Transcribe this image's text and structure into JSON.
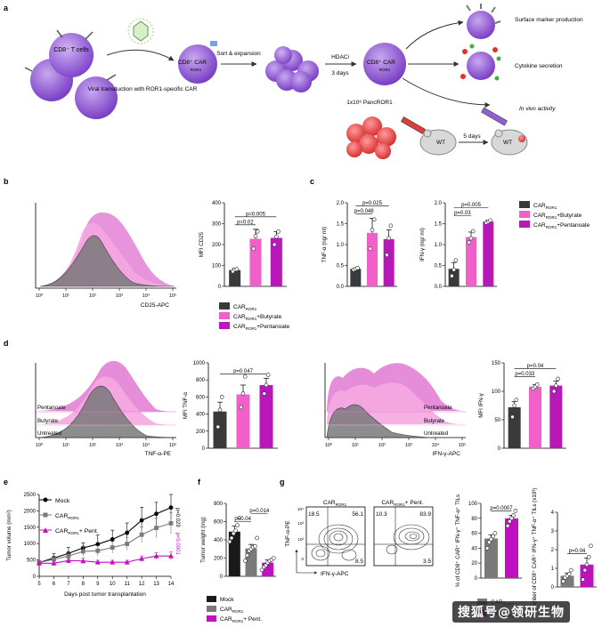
{
  "panel_letters": [
    "a",
    "b",
    "c",
    "d",
    "e",
    "f",
    "g"
  ],
  "panel_a": {
    "cd8_tcells": "CD8⁺ T cells",
    "viral_transduction": "Viral transduction with ROR1-specific CAR",
    "car_ror1": "CD8⁺ CAR",
    "ror1_sub": "ROR1",
    "sort_expansion": "Sort & expansion",
    "hdaci": "HDACi",
    "three_days": "3 days",
    "pancror1": "1x10⁶ PancROR1",
    "wt": "WT",
    "five_days": "5 days",
    "surface_marker": "Surface marker production",
    "cytokine": "Cytokine secretion",
    "in_vivo": "In vivo activity"
  },
  "legend_b": [
    "CAR_ROR1",
    "CAR_ROR1+Butyrate",
    "CAR_ROR1+Pentanoate"
  ],
  "legend_labels": {
    "car": "CAR",
    "sub": "ROR1",
    "butyrate": "+Butyrate",
    "pentanoate": "+Pentanoate",
    "pent": "+ Pent."
  },
  "colors": {
    "black": "#3a3a3a",
    "pink": "#f060c8",
    "magenta": "#b818b8",
    "grey": "#7a7a7a",
    "light_pink": "#f4a8e0"
  },
  "hist_b": {
    "xlabel": "CD25-APC",
    "ticks": [
      "10⁰",
      "10¹",
      "10²",
      "10³",
      "10⁴",
      "10⁵"
    ]
  },
  "hist_d1": {
    "xlabel": "TNF-α-PE",
    "rows": [
      "Pentanoate",
      "Butyrate",
      "Untreated"
    ],
    "ticks": [
      "10⁰",
      "10¹",
      "10²",
      "10³",
      "10⁴",
      "10⁵"
    ]
  },
  "hist_d2": {
    "xlabel": "IFN-γ-APC",
    "rows": [
      "Pentanoate",
      "Butyrate",
      "Untreated"
    ],
    "ticks": [
      "10⁰",
      "10¹",
      "10²",
      "10³",
      "10⁴",
      "10⁵"
    ]
  },
  "chart_data": [
    {
      "id": "b_mfi_cd25",
      "type": "bar",
      "ylabel": "MFI CD25",
      "ylim": [
        0,
        400
      ],
      "yticks": [
        "0",
        "100",
        "200",
        "300",
        "400"
      ],
      "categories": [
        "CAR_ROR1",
        "CAR_ROR1+Butyrate",
        "CAR_ROR1+Pentanoate"
      ],
      "values": [
        78,
        228,
        232
      ],
      "errors": [
        8,
        45,
        30
      ],
      "points": [
        [
          72,
          80,
          82
        ],
        [
          180,
          240,
          262
        ],
        [
          200,
          238,
          262
        ]
      ],
      "pvalues": [
        {
          "label": "p=0.02",
          "from": 0,
          "to": 1
        },
        {
          "label": "p=0.005",
          "from": 0,
          "to": 2
        }
      ]
    },
    {
      "id": "c_tnfa",
      "type": "bar",
      "ylabel": "TNF-α (ng/ ml)",
      "ylim": [
        0,
        2.0
      ],
      "yticks": [
        "0.0",
        "0.5",
        "1.0",
        "1.5",
        "2.0"
      ],
      "categories": [
        "CAR_ROR1",
        "CAR_ROR1+Butyrate",
        "CAR_ROR1+Pentanoate"
      ],
      "values": [
        0.42,
        1.28,
        1.13
      ],
      "errors": [
        0.02,
        0.35,
        0.22
      ],
      "points": [
        [
          0.4,
          0.42,
          0.44
        ],
        [
          0.9,
          1.35,
          1.6
        ],
        [
          0.75,
          1.15,
          1.45
        ]
      ],
      "pvalues": [
        {
          "label": "p=0.048",
          "from": 0,
          "to": 1
        },
        {
          "label": "p=0.025",
          "from": 0,
          "to": 2
        }
      ]
    },
    {
      "id": "c_ifng",
      "type": "bar",
      "ylabel": "IFN-γ (ng/ ml)",
      "ylim": [
        0,
        2.0
      ],
      "yticks": [
        "0.0",
        "0.5",
        "1.0",
        "1.5",
        "2.0"
      ],
      "categories": [
        "CAR_ROR1",
        "CAR_ROR1+Butyrate",
        "CAR_ROR1+Pentanoate"
      ],
      "values": [
        0.42,
        1.18,
        1.55
      ],
      "errors": [
        0.15,
        0.12,
        0.03
      ],
      "points": [
        [
          0.25,
          0.4,
          0.62
        ],
        [
          1.05,
          1.15,
          1.32
        ],
        [
          1.52,
          1.55,
          1.58
        ]
      ],
      "pvalues": [
        {
          "label": "p=0.03",
          "from": 0,
          "to": 1
        },
        {
          "label": "p=0.005",
          "from": 0,
          "to": 2
        }
      ]
    },
    {
      "id": "d_mfi_tnfa",
      "type": "bar",
      "ylabel": "MFI TNF-α",
      "ylim": [
        0,
        1000
      ],
      "yticks": [
        "0",
        "200",
        "400",
        "600",
        "800",
        "1000"
      ],
      "categories": [
        "CAR_ROR1",
        "CAR_ROR1+Butyrate",
        "CAR_ROR1+Pentanoate"
      ],
      "values": [
        430,
        630,
        740
      ],
      "errors": [
        110,
        110,
        80
      ],
      "points": [
        [
          250,
          450,
          600
        ],
        [
          480,
          640,
          840
        ],
        [
          640,
          740,
          860
        ]
      ],
      "pvalues": [
        {
          "label": "p=0.047",
          "from": 0,
          "to": 2
        }
      ]
    },
    {
      "id": "d_mfi_ifng",
      "type": "bar",
      "ylabel": "MFI IFN-γ",
      "ylim": [
        0,
        150
      ],
      "yticks": [
        "0",
        "50",
        "100",
        "150"
      ],
      "categories": [
        "CAR_ROR1",
        "CAR_ROR1+Butyrate",
        "CAR_ROR1+Pentanoate"
      ],
      "values": [
        72,
        108,
        110
      ],
      "errors": [
        10,
        4,
        8
      ],
      "points": [
        [
          55,
          75,
          85
        ],
        [
          105,
          108,
          112
        ],
        [
          100,
          110,
          122
        ]
      ],
      "pvalues": [
        {
          "label": "p=0.033",
          "from": 0,
          "to": 1
        },
        {
          "label": "p=0.04",
          "from": 0,
          "to": 2
        }
      ]
    },
    {
      "id": "e_tumor",
      "type": "line",
      "xlabel": "Days post tumor transplantation",
      "ylabel": "Tumor volume (mm³)",
      "xlim": [
        5,
        14
      ],
      "ylim": [
        0,
        2500
      ],
      "xticks": [
        "5",
        "6",
        "7",
        "8",
        "9",
        "10",
        "11",
        "12",
        "13",
        "14"
      ],
      "yticks": [
        "0",
        "500",
        "1000",
        "1500",
        "2000",
        "2500"
      ],
      "x": [
        5,
        6,
        7,
        8,
        9,
        10,
        11,
        12,
        13,
        14
      ],
      "series": [
        {
          "name": "Mock",
          "marker": "circle",
          "values": [
            420,
            560,
            700,
            870,
            980,
            1130,
            1330,
            1710,
            1910,
            2100
          ],
          "err": [
            60,
            140,
            180,
            150,
            280,
            280,
            300,
            400,
            350,
            400
          ]
        },
        {
          "name": "CAR_ROR1",
          "marker": "square",
          "values": [
            420,
            520,
            620,
            760,
            780,
            880,
            990,
            1270,
            1480,
            1620
          ],
          "err": [
            60,
            100,
            110,
            150,
            150,
            180,
            200,
            240,
            300,
            320
          ]
        },
        {
          "name": "CAR_ROR1 + Pent.",
          "marker": "triangle",
          "values": [
            400,
            400,
            480,
            470,
            430,
            430,
            430,
            540,
            620,
            620
          ],
          "err": [
            40,
            60,
            60,
            80,
            60,
            60,
            60,
            80,
            100,
            120
          ]
        }
      ],
      "pvalues": [
        {
          "label": "p=0.029",
          "between": "Mock vs CAR_ROR1"
        },
        {
          "label": "p<0.0001",
          "between": "CAR_ROR1 vs Pent."
        }
      ]
    },
    {
      "id": "f_weight",
      "type": "bar",
      "ylabel": "Tumor weight (mg)",
      "ylim": [
        0,
        800
      ],
      "yticks": [
        "0",
        "200",
        "400",
        "600",
        "800"
      ],
      "categories": [
        "Mock",
        "CAR_ROR1",
        "CAR_ROR1 + Pent."
      ],
      "values": [
        490,
        305,
        150
      ],
      "errors": [
        60,
        45,
        30
      ],
      "points": [
        [
          380,
          420,
          470,
          500,
          560,
          640
        ],
        [
          170,
          230,
          280,
          300,
          320,
          330,
          420
        ],
        [
          70,
          100,
          120,
          150,
          170,
          180,
          200
        ]
      ],
      "pvalues": [
        {
          "label": "p=0.04",
          "from": 0,
          "to": 1
        },
        {
          "label": "p=0.014",
          "from": 1,
          "to": 2
        }
      ],
      "legend": [
        "Mock",
        "CAR_ROR1",
        "CAR_ROR1 + Pent."
      ]
    },
    {
      "id": "g_percent",
      "type": "bar",
      "ylabel": "% of CD8⁺ CAR⁺ IFN-γ⁺ TNF-α⁺ TILs",
      "ylim": [
        0,
        100
      ],
      "yticks": [
        "0",
        "20",
        "40",
        "60",
        "80",
        "100"
      ],
      "categories": [
        "CAR_ROR1",
        "CAR_ROR1 + Pent."
      ],
      "values": [
        53,
        80
      ],
      "errors": [
        5,
        4
      ],
      "points": [
        [
          40,
          48,
          52,
          56,
          60
        ],
        [
          70,
          76,
          80,
          84,
          90
        ]
      ],
      "pvalues": [
        {
          "label": "p=0.0007",
          "from": 0,
          "to": 1
        }
      ]
    },
    {
      "id": "g_number",
      "type": "bar",
      "ylabel": "Number of CD8⁺ CAR⁺ IFN-γ⁺ TNF-α⁺ TILs (x10³)",
      "ylim": [
        0,
        4
      ],
      "yticks": [
        "0",
        "1",
        "2",
        "3",
        "4"
      ],
      "categories": [
        "CAR_ROR1",
        "CAR_ROR1 + Pent."
      ],
      "values": [
        0.6,
        1.2
      ],
      "errors": [
        0.15,
        0.35
      ],
      "points": [
        [
          0.3,
          0.5,
          0.6,
          0.7,
          0.9
        ],
        [
          0.4,
          0.9,
          1.2,
          1.6,
          2.2
        ]
      ],
      "pvalues": [
        {
          "label": "p=0.04",
          "from": 0,
          "to": 1
        }
      ]
    }
  ],
  "flow_g": {
    "titles": [
      "CAR_ROR1",
      "CAR_ROR1 + Pent."
    ],
    "ylabel": "TNF-α-PE",
    "xlabel": "IFN-γ-APC",
    "plot1_q": {
      "ul": "18.5",
      "ur": "56.1",
      "lr": "8.5"
    },
    "plot2_q": {
      "ul": "10.3",
      "ur": "83.9",
      "lr": "3.5"
    },
    "yticks": [
      "0",
      "10²",
      "10³",
      "10⁴"
    ]
  },
  "g_legend": [
    "CAR_ROR1",
    "CAR_ROR1 + Pent."
  ],
  "watermark": "搜狐号@领研生物"
}
